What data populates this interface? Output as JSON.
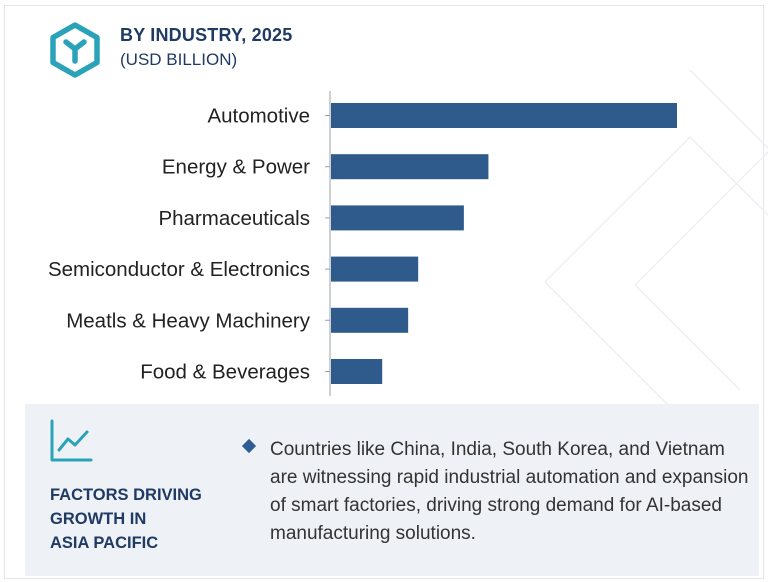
{
  "header": {
    "title": "BY INDUSTRY, 2025",
    "subtitle": "(USD BILLION)"
  },
  "chart_data": {
    "type": "bar",
    "orientation": "horizontal",
    "title": "BY INDUSTRY, 2025",
    "ylabel": "(USD BILLION)",
    "categories": [
      "Automotive",
      "Energy & Power",
      "Pharmaceuticals",
      "Semiconductor & Electronics",
      "Meatls & Heavy Machinery",
      "Food & Beverages"
    ],
    "values": [
      100,
      45.5,
      38.4,
      25.2,
      22.3,
      14.8
    ],
    "xlim": [
      0,
      100
    ],
    "grid": false,
    "bar_color": "#2e5a8c"
  },
  "factors": {
    "title_lines": [
      "FACTORS DRIVING",
      "GROWTH IN",
      "ASIA PACIFIC"
    ],
    "text": "Countries like China, India, South Korea, and Vietnam are witnessing rapid industrial automation and expansion of smart factories, driving strong demand for AI-based manufacturing solutions."
  },
  "colors": {
    "accent": "#2aa3b9",
    "brand": "#1f3a63",
    "bar": "#2e5a8c",
    "panel": "#eef1f6"
  },
  "icons": {
    "logo": "hexagon-y-logo-icon",
    "trend": "trend-line-chart-icon",
    "bullet": "diamond-bullet-icon"
  }
}
